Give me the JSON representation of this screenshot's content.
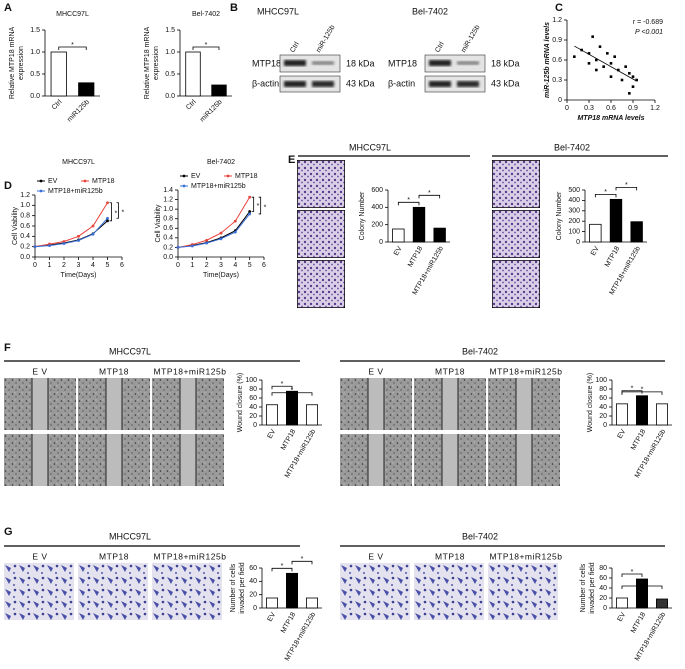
{
  "panels": {
    "letters": [
      "A",
      "B",
      "C",
      "D",
      "E",
      "F",
      "G"
    ]
  },
  "blots": [
    {
      "title": "MHCC97L",
      "lanes": [
        "Ctrl",
        "miR-125b"
      ],
      "rows": [
        {
          "name": "MTP18",
          "size": "18 kDa"
        },
        {
          "name": "β-actin",
          "size": "43 kDa"
        }
      ]
    },
    {
      "title": "Bel-7402",
      "lanes": [
        "Ctrl",
        "miR-125b"
      ],
      "rows": [
        {
          "name": "MTP18",
          "size": "18 kDa"
        },
        {
          "name": "β-actin",
          "size": "43 kDa"
        }
      ]
    }
  ],
  "sections": [
    {
      "title": "MHCC97L"
    },
    {
      "title": "Bel-7402"
    },
    {
      "title": "MHCC97L",
      "groups": [
        "E V",
        "MTP18",
        "MTP18+miR125b"
      ]
    },
    {
      "title": "Bel-7402",
      "groups": [
        "E V",
        "MTP18",
        "MTP18+miR125b"
      ]
    },
    {
      "title": "MHCC97L",
      "groups": [
        "E V",
        "MTP18",
        "MTP18+miR125b"
      ]
    },
    {
      "title": "Bel-7402",
      "groups": [
        "E V",
        "MTP18",
        "MTP18+miR125b"
      ]
    }
  ],
  "chart_data": [
    {
      "type": "bar",
      "title": "MHCC97L",
      "y_label": [
        "Relative MTP18 mRNA",
        "expression"
      ],
      "categories": [
        "Ctrl",
        "miR125b"
      ],
      "values": [
        1,
        0.3
      ],
      "colors": [
        "#ffffff",
        "#000000"
      ],
      "ylim": [
        0,
        1.5
      ],
      "yticks": [
        {
          "value": 0,
          "label": "0.0"
        },
        0.5,
        {
          "value": 1,
          "label": "1.0"
        },
        1.5
      ],
      "annotations": [
        "*"
      ]
    },
    {
      "type": "bar",
      "title": "Bel-7402",
      "y_label": [
        "Relative MTP18 mRNA",
        "expression"
      ],
      "categories": [
        "Ctrl",
        "miR125b"
      ],
      "values": [
        1,
        0.25
      ],
      "colors": [
        "#ffffff",
        "#000000"
      ],
      "ylim": [
        0,
        1.5
      ],
      "yticks": [
        {
          "value": 0,
          "label": "0.0"
        },
        0.5,
        {
          "value": 1,
          "label": "1.0"
        },
        1.5
      ],
      "annotations": [
        "*"
      ]
    },
    {
      "type": "scatter",
      "x_label": "MTP18 mRNA levels",
      "y_label": "miR-125b mRNA levels",
      "x": [
        0.1,
        0.2,
        0.3,
        0.3,
        0.35,
        0.4,
        0.4,
        0.45,
        0.5,
        0.55,
        0.6,
        0.6,
        0.65,
        0.7,
        0.75,
        0.8,
        0.85,
        0.9,
        0.9,
        0.95,
        0.85
      ],
      "y": [
        0.65,
        0.75,
        0.7,
        0.55,
        0.95,
        0.6,
        0.45,
        0.8,
        0.5,
        0.7,
        0.35,
        0.55,
        0.65,
        0.45,
        0.3,
        0.5,
        0.4,
        0.35,
        0.2,
        0.3,
        0.1
      ],
      "color": "#000000",
      "xlim": [
        0,
        1.2
      ],
      "xticks": [
        0,
        0.3,
        0.6,
        0.9,
        1.2
      ],
      "ylim": [
        0,
        1.2
      ],
      "yticks": [
        0,
        0.3,
        0.6,
        0.9,
        1.2
      ],
      "annotations": [
        "r = -0.689",
        "P <0.001"
      ]
    },
    {
      "type": "line",
      "title": "MHCC97L",
      "x_label": "Time(Days)",
      "y_label": "Cell Viability",
      "x": [
        0,
        1,
        2,
        3,
        4,
        5
      ],
      "series": [
        {
          "name": "EV",
          "color": "#000000",
          "values": [
            0.2,
            0.23,
            0.27,
            0.33,
            0.45,
            0.7
          ]
        },
        {
          "name": "MTP18",
          "color": "#e8423a",
          "values": [
            0.2,
            0.25,
            0.3,
            0.4,
            0.6,
            1.05
          ]
        },
        {
          "name": "MTP18+miR125b",
          "color": "#3a6fd8",
          "values": [
            0.2,
            0.22,
            0.26,
            0.32,
            0.44,
            0.75
          ]
        }
      ],
      "xlim": [
        0,
        6
      ],
      "xticks": [
        0,
        1,
        2,
        3,
        4,
        5,
        6
      ],
      "ylim": [
        0,
        1.2
      ],
      "yticks": [
        {
          "value": 0,
          "label": "0.0"
        },
        0.2,
        0.4,
        0.6,
        0.8,
        {
          "value": 1,
          "label": "1.0"
        },
        1.2
      ],
      "annotations": [
        "*",
        "*"
      ]
    },
    {
      "type": "line",
      "title": "Bel-7402",
      "x_label": "Time(Days)",
      "y_label": "Cell Viability",
      "x": [
        0,
        1,
        2,
        3,
        4,
        5
      ],
      "series": [
        {
          "name": "EV",
          "color": "#000000",
          "values": [
            0.2,
            0.24,
            0.3,
            0.4,
            0.55,
            0.95
          ]
        },
        {
          "name": "MTP18",
          "color": "#e8423a",
          "values": [
            0.2,
            0.26,
            0.35,
            0.5,
            0.75,
            1.25
          ]
        },
        {
          "name": "MTP18+miR125b",
          "color": "#3a6fd8",
          "values": [
            0.2,
            0.23,
            0.29,
            0.38,
            0.52,
            0.9
          ]
        }
      ],
      "xlim": [
        0,
        6
      ],
      "xticks": [
        0,
        1,
        2,
        3,
        4,
        5,
        6
      ],
      "ylim": [
        0,
        1.4
      ],
      "yticks": [
        {
          "value": 0,
          "label": "0.0"
        },
        0.2,
        0.4,
        0.6,
        0.8,
        {
          "value": 1,
          "label": "1.0"
        },
        1.2,
        1.4
      ],
      "annotations": [
        "*",
        "*"
      ]
    },
    {
      "type": "bar",
      "y_label": "Colony Number",
      "categories": [
        "EV",
        "MTP18",
        "MTP18+miR125b"
      ],
      "values": [
        150,
        400,
        160
      ],
      "colors": [
        "#ffffff",
        "#000000",
        "#000000"
      ],
      "ylim": [
        0,
        600
      ],
      "yticks": [
        0,
        200,
        400,
        600
      ],
      "annotations": [
        "*",
        "*"
      ]
    },
    {
      "type": "bar",
      "y_label": "Colony Number",
      "categories": [
        "EV",
        "MTP18",
        "MTP18+miR125b"
      ],
      "values": [
        170,
        410,
        195
      ],
      "colors": [
        "#ffffff",
        "#000000",
        "#000000"
      ],
      "ylim": [
        0,
        500
      ],
      "yticks": [
        0,
        100,
        200,
        300,
        400,
        500
      ],
      "annotations": [
        "*",
        "*"
      ]
    },
    {
      "type": "bar",
      "y_label": "Wound closure (%)",
      "categories": [
        "EV",
        "MTP18",
        "MTP18+miR125b"
      ],
      "values": [
        45,
        75,
        45
      ],
      "colors": [
        "#ffffff",
        "#000000",
        "#ffffff"
      ],
      "ylim": [
        0,
        100
      ],
      "yticks": [
        0,
        20,
        40,
        60,
        80,
        100
      ],
      "annotations": [
        "*",
        "*"
      ]
    },
    {
      "type": "bar",
      "y_label": "Wound closure (%)",
      "categories": [
        "EV",
        "MTP18",
        "MTP18+miR125b"
      ],
      "values": [
        47,
        65,
        47
      ],
      "colors": [
        "#ffffff",
        "#000000",
        "#ffffff"
      ],
      "ylim": [
        0,
        100
      ],
      "yticks": [
        0,
        20,
        40,
        60,
        80,
        100
      ],
      "annotations": [
        "*",
        "*"
      ]
    },
    {
      "type": "bar",
      "y_label": [
        "Number of cells",
        "invaded per field"
      ],
      "categories": [
        "EV",
        "MTP18",
        "MTP18+miR125b"
      ],
      "values": [
        15,
        52,
        15
      ],
      "colors": [
        "#ffffff",
        "#000000",
        "#ffffff"
      ],
      "ylim": [
        0,
        60
      ],
      "yticks": [
        0,
        20,
        40,
        60
      ],
      "annotations": [
        "*",
        "*"
      ]
    },
    {
      "type": "bar",
      "y_label": [
        "Number of cells",
        "invaded per field"
      ],
      "categories": [
        "EV",
        "MTP18",
        "MTP18+miR125b"
      ],
      "values": [
        20,
        58,
        18
      ],
      "colors": [
        "#ffffff",
        "#000000",
        "#333333"
      ],
      "ylim": [
        0,
        80
      ],
      "yticks": [
        0,
        20,
        40,
        60,
        80
      ],
      "annotations": [
        "*",
        "*"
      ]
    }
  ]
}
